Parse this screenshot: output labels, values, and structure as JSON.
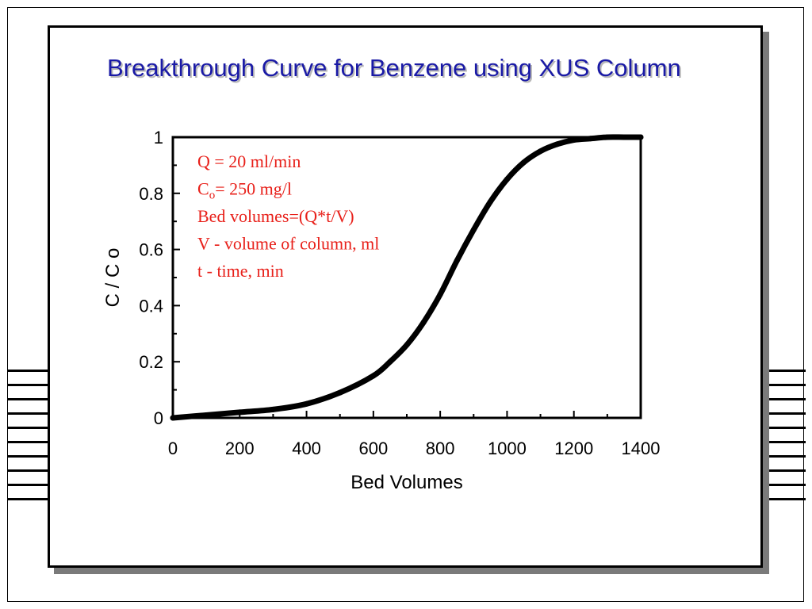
{
  "slide": {
    "title": "Breakthrough Curve for Benzene using XUS Column"
  },
  "annotations": [
    {
      "id": "flow",
      "text": "Q = 20 ml/min"
    },
    {
      "id": "conc",
      "main": "C",
      "sub": "o",
      "rest": "= 250 mg/l"
    },
    {
      "id": "bedvol",
      "text": "Bed volumes=(Q*t/V)"
    },
    {
      "id": "volume",
      "text": "V - volume of column, ml"
    },
    {
      "id": "time",
      "text": "t - time, min"
    }
  ],
  "colors": {
    "title": "#1a1aa6",
    "annotation": "#e8201a",
    "curve": "#000000"
  },
  "chart_data": {
    "type": "line",
    "title": "Breakthrough Curve for Benzene using XUS Column",
    "xlabel": "Bed Volumes",
    "ylabel": "C / C o",
    "xlim": [
      0,
      1400
    ],
    "ylim": [
      0,
      1
    ],
    "xticks": [
      "0",
      "200",
      "400",
      "600",
      "800",
      "1000",
      "1200",
      "1400"
    ],
    "yticks": [
      "0",
      "0.2",
      "0.4",
      "0.6",
      "0.8",
      "1"
    ],
    "grid": false,
    "series": [
      {
        "x": [
          0,
          100,
          200,
          300,
          400,
          500,
          600,
          650,
          700,
          750,
          800,
          850,
          900,
          950,
          1000,
          1050,
          1100,
          1150,
          1200,
          1250,
          1300,
          1350,
          1400
        ],
        "y": [
          0,
          0.01,
          0.02,
          0.03,
          0.05,
          0.09,
          0.15,
          0.2,
          0.26,
          0.34,
          0.44,
          0.56,
          0.67,
          0.77,
          0.85,
          0.91,
          0.95,
          0.975,
          0.99,
          0.995,
          1.0,
          1.0,
          1.0
        ]
      }
    ]
  }
}
